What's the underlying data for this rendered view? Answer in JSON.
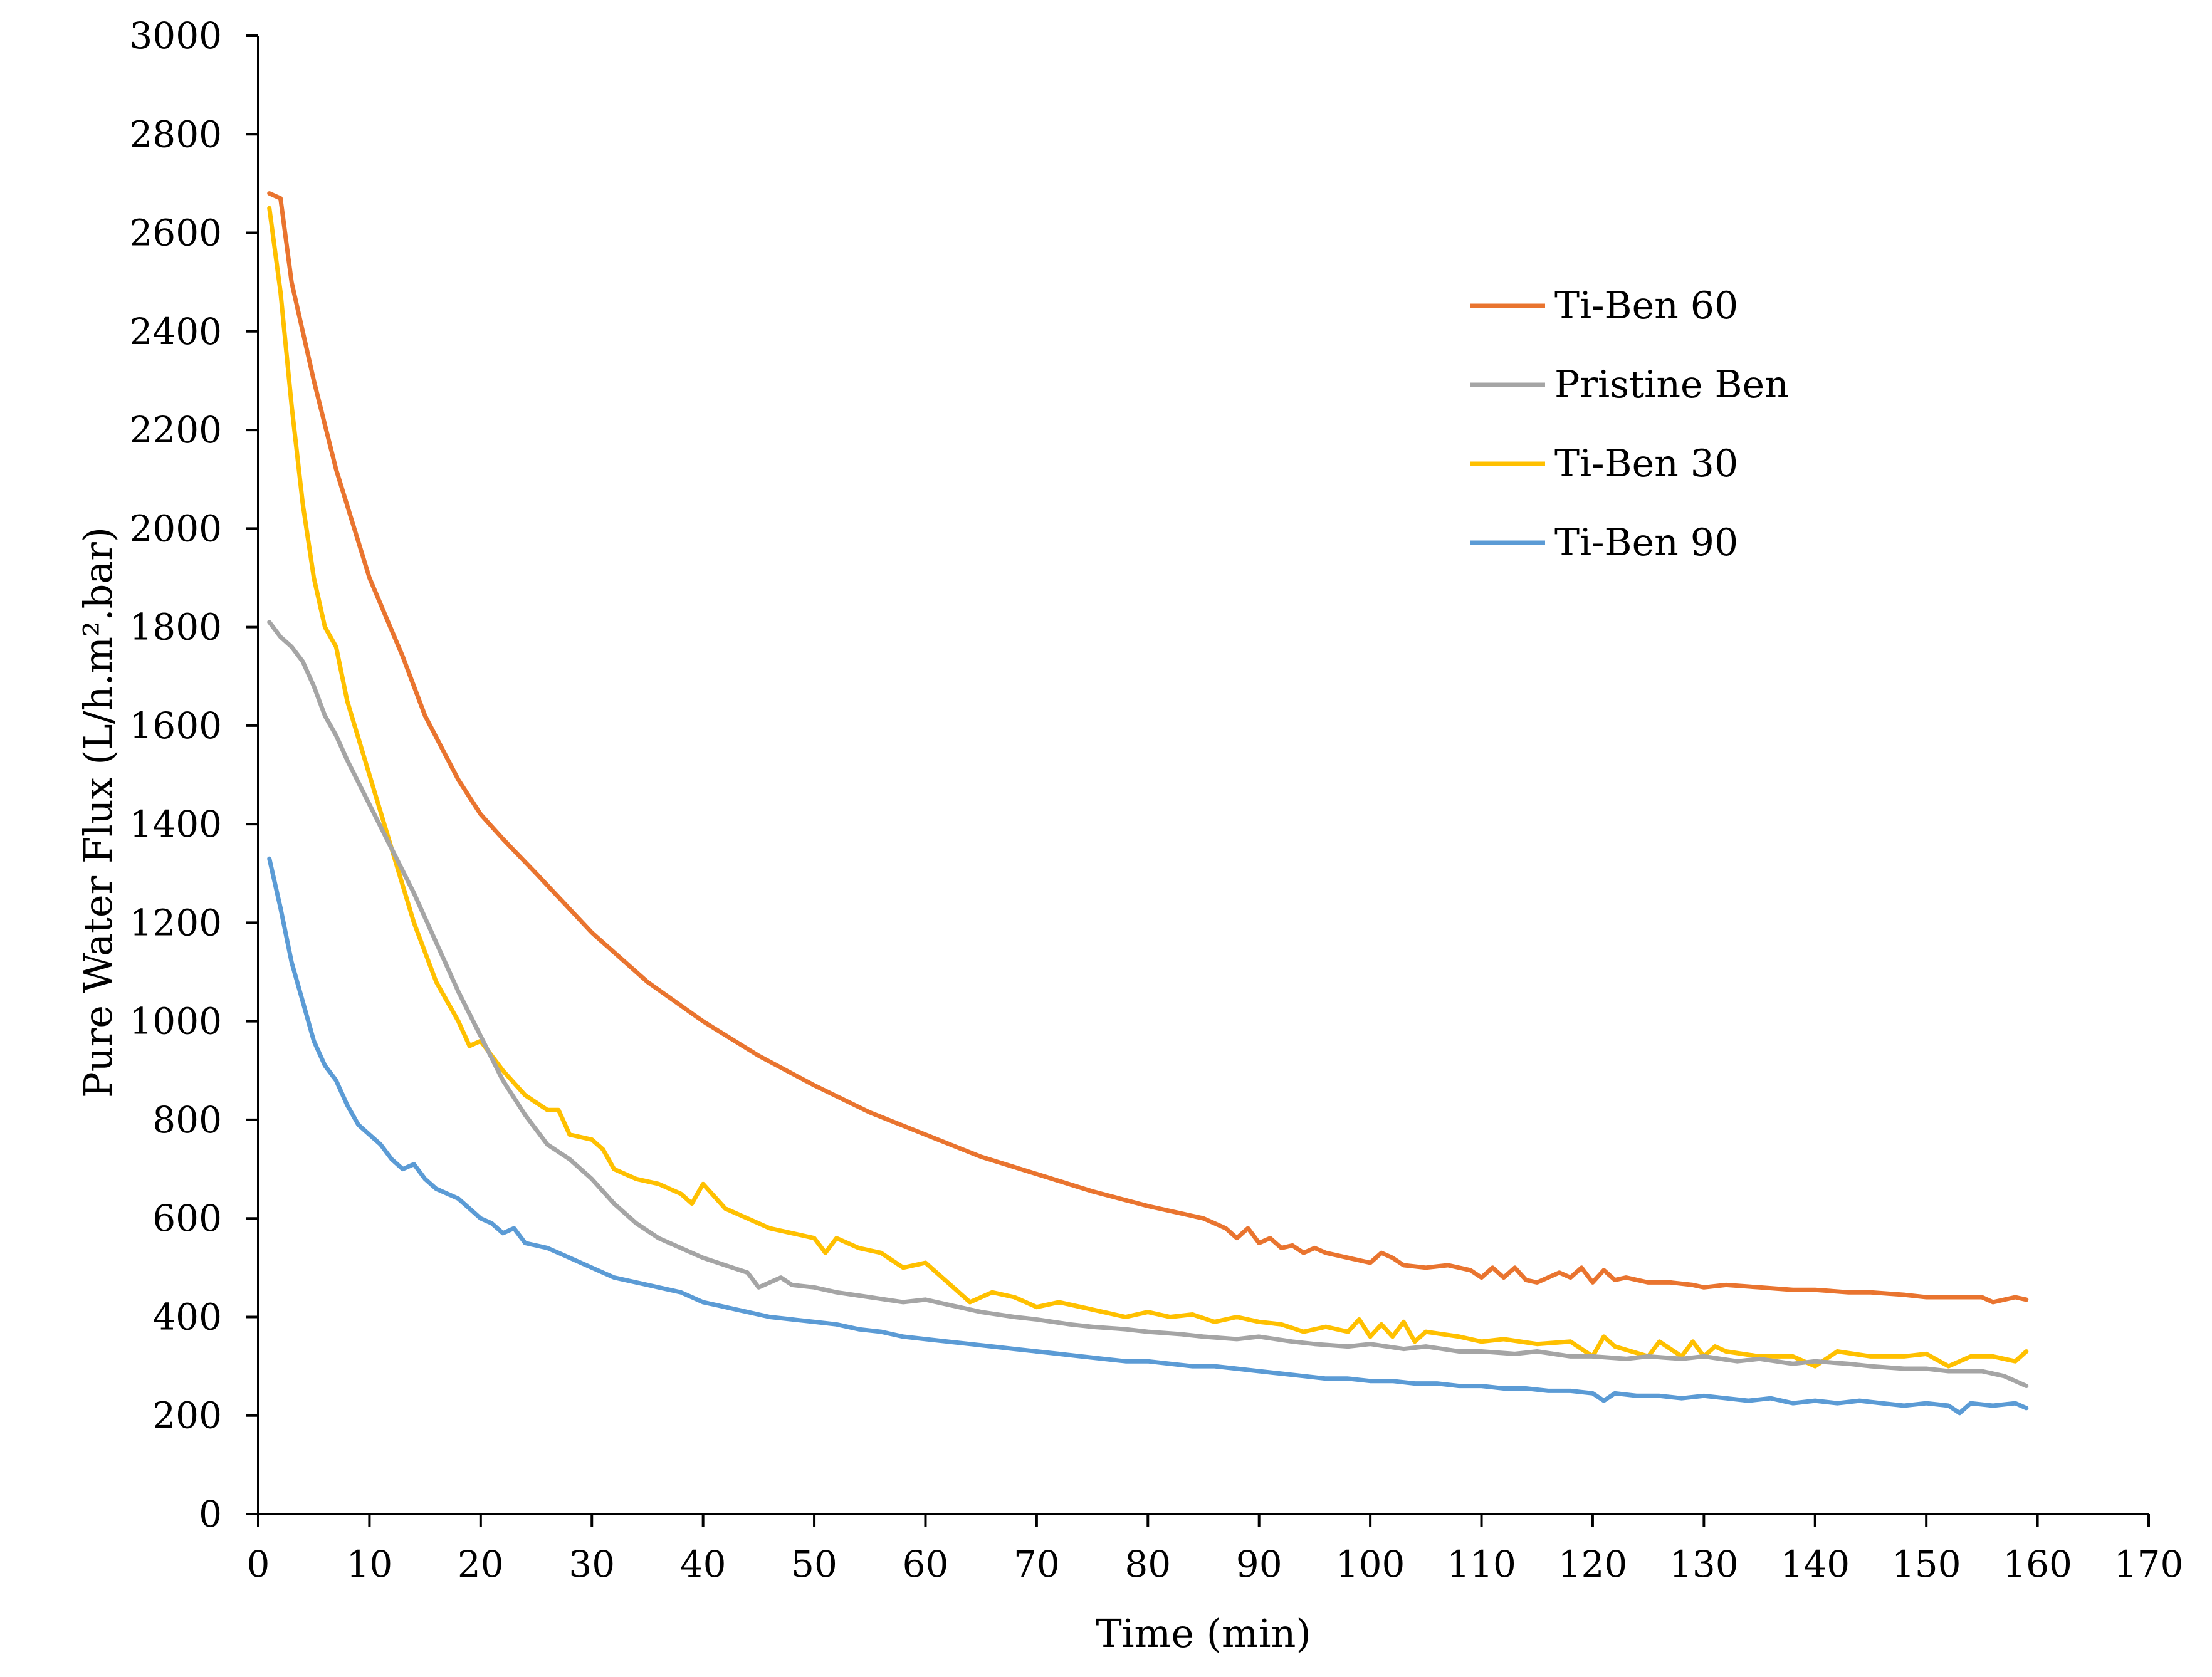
{
  "chart_data": {
    "type": "line",
    "title": "",
    "xlabel": "Time (min)",
    "ylabel": "Pure Water Flux (L/h.m².bar)",
    "xlim": [
      0,
      170
    ],
    "ylim": [
      0,
      3000
    ],
    "xticks": [
      0,
      10,
      20,
      30,
      40,
      50,
      60,
      70,
      80,
      90,
      100,
      110,
      120,
      130,
      140,
      150,
      160,
      170
    ],
    "yticks": [
      0,
      200,
      400,
      600,
      800,
      1000,
      1200,
      1400,
      1600,
      1800,
      2000,
      2200,
      2400,
      2600,
      2800,
      3000
    ],
    "grid": false,
    "legend_position": "top-right",
    "series": [
      {
        "name": "Ti-Ben 60",
        "color": "#E9742F",
        "x": [
          1,
          2,
          3,
          5,
          7,
          10,
          13,
          15,
          18,
          20,
          22,
          25,
          30,
          35,
          40,
          45,
          50,
          55,
          60,
          65,
          70,
          75,
          80,
          85,
          87,
          88,
          89,
          90,
          91,
          92,
          93,
          94,
          95,
          96,
          98,
          100,
          101,
          102,
          103,
          105,
          107,
          109,
          110,
          111,
          112,
          113,
          114,
          115,
          117,
          118,
          119,
          120,
          121,
          122,
          123,
          125,
          127,
          129,
          130,
          132,
          135,
          138,
          140,
          143,
          145,
          148,
          150,
          153,
          155,
          156,
          158,
          159
        ],
        "values": [
          2680,
          2670,
          2500,
          2300,
          2120,
          1900,
          1740,
          1620,
          1490,
          1420,
          1370,
          1300,
          1180,
          1080,
          1000,
          930,
          870,
          815,
          770,
          725,
          690,
          655,
          625,
          600,
          580,
          560,
          580,
          550,
          560,
          540,
          545,
          530,
          540,
          530,
          520,
          510,
          530,
          520,
          505,
          500,
          505,
          495,
          480,
          500,
          480,
          500,
          475,
          470,
          490,
          480,
          500,
          470,
          495,
          475,
          480,
          470,
          470,
          465,
          460,
          465,
          460,
          455,
          455,
          450,
          450,
          445,
          440,
          440,
          440,
          430,
          440,
          435
        ]
      },
      {
        "name": "Pristine Ben",
        "color": "#A5A5A5",
        "x": [
          1,
          2,
          3,
          4,
          5,
          6,
          7,
          8,
          10,
          12,
          14,
          15,
          16,
          18,
          20,
          22,
          24,
          26,
          28,
          30,
          32,
          34,
          36,
          38,
          40,
          42,
          44,
          45,
          46,
          47,
          48,
          50,
          52,
          55,
          58,
          60,
          63,
          65,
          68,
          70,
          73,
          75,
          78,
          80,
          83,
          85,
          88,
          90,
          93,
          95,
          98,
          100,
          103,
          105,
          108,
          110,
          113,
          115,
          118,
          120,
          123,
          125,
          128,
          130,
          133,
          135,
          138,
          140,
          143,
          145,
          148,
          150,
          152,
          155,
          157,
          159
        ],
        "values": [
          1810,
          1780,
          1760,
          1730,
          1680,
          1620,
          1580,
          1530,
          1440,
          1350,
          1260,
          1210,
          1160,
          1060,
          970,
          880,
          810,
          750,
          720,
          680,
          630,
          590,
          560,
          540,
          520,
          505,
          490,
          460,
          470,
          480,
          465,
          460,
          450,
          440,
          430,
          435,
          420,
          410,
          400,
          395,
          385,
          380,
          375,
          370,
          365,
          360,
          355,
          360,
          350,
          345,
          340,
          345,
          335,
          340,
          330,
          330,
          325,
          330,
          320,
          320,
          315,
          320,
          315,
          320,
          310,
          315,
          305,
          310,
          305,
          300,
          295,
          295,
          290,
          290,
          280,
          260
        ]
      },
      {
        "name": "Ti-Ben 30",
        "color": "#FFC000",
        "x": [
          1,
          2,
          3,
          4,
          5,
          6,
          7,
          8,
          10,
          12,
          14,
          16,
          18,
          19,
          20,
          22,
          24,
          26,
          27,
          28,
          30,
          31,
          32,
          34,
          36,
          38,
          39,
          40,
          42,
          44,
          46,
          48,
          50,
          51,
          52,
          54,
          56,
          58,
          60,
          62,
          64,
          66,
          68,
          70,
          72,
          74,
          76,
          78,
          80,
          82,
          84,
          86,
          88,
          90,
          92,
          94,
          96,
          98,
          99,
          100,
          101,
          102,
          103,
          104,
          105,
          108,
          110,
          112,
          115,
          118,
          120,
          121,
          122,
          125,
          126,
          128,
          129,
          130,
          131,
          132,
          135,
          138,
          140,
          142,
          145,
          148,
          150,
          152,
          154,
          156,
          158,
          159
        ],
        "values": [
          2650,
          2480,
          2250,
          2050,
          1900,
          1800,
          1760,
          1650,
          1500,
          1350,
          1200,
          1080,
          1000,
          950,
          960,
          900,
          850,
          820,
          820,
          770,
          760,
          740,
          700,
          680,
          670,
          650,
          630,
          670,
          620,
          600,
          580,
          570,
          560,
          530,
          560,
          540,
          530,
          500,
          510,
          470,
          430,
          450,
          440,
          420,
          430,
          420,
          410,
          400,
          410,
          400,
          405,
          390,
          400,
          390,
          385,
          370,
          380,
          370,
          395,
          360,
          385,
          360,
          390,
          350,
          370,
          360,
          350,
          355,
          345,
          350,
          320,
          360,
          340,
          320,
          350,
          320,
          350,
          320,
          340,
          330,
          320,
          320,
          300,
          330,
          320,
          320,
          325,
          300,
          320,
          320,
          310,
          330
        ]
      },
      {
        "name": "Ti-Ben 90",
        "color": "#5B9BD5",
        "x": [
          1,
          2,
          3,
          4,
          5,
          6,
          7,
          8,
          9,
          10,
          11,
          12,
          13,
          14,
          15,
          16,
          18,
          20,
          21,
          22,
          23,
          24,
          26,
          28,
          30,
          32,
          34,
          36,
          38,
          40,
          42,
          44,
          46,
          48,
          50,
          52,
          54,
          56,
          58,
          60,
          62,
          64,
          66,
          68,
          70,
          72,
          74,
          76,
          78,
          80,
          82,
          84,
          86,
          88,
          90,
          92,
          94,
          96,
          98,
          100,
          102,
          104,
          106,
          108,
          110,
          112,
          114,
          116,
          118,
          120,
          121,
          122,
          124,
          126,
          128,
          130,
          132,
          134,
          136,
          138,
          140,
          142,
          144,
          146,
          148,
          150,
          152,
          153,
          154,
          156,
          158,
          159
        ],
        "values": [
          1330,
          1230,
          1120,
          1040,
          960,
          910,
          880,
          830,
          790,
          770,
          750,
          720,
          700,
          710,
          680,
          660,
          640,
          600,
          590,
          570,
          580,
          550,
          540,
          520,
          500,
          480,
          470,
          460,
          450,
          430,
          420,
          410,
          400,
          395,
          390,
          385,
          375,
          370,
          360,
          355,
          350,
          345,
          340,
          335,
          330,
          325,
          320,
          315,
          310,
          310,
          305,
          300,
          300,
          295,
          290,
          285,
          280,
          275,
          275,
          270,
          270,
          265,
          265,
          260,
          260,
          255,
          255,
          250,
          250,
          245,
          230,
          245,
          240,
          240,
          235,
          240,
          235,
          230,
          235,
          225,
          230,
          225,
          230,
          225,
          220,
          225,
          220,
          205,
          225,
          220,
          225,
          215
        ]
      }
    ]
  }
}
